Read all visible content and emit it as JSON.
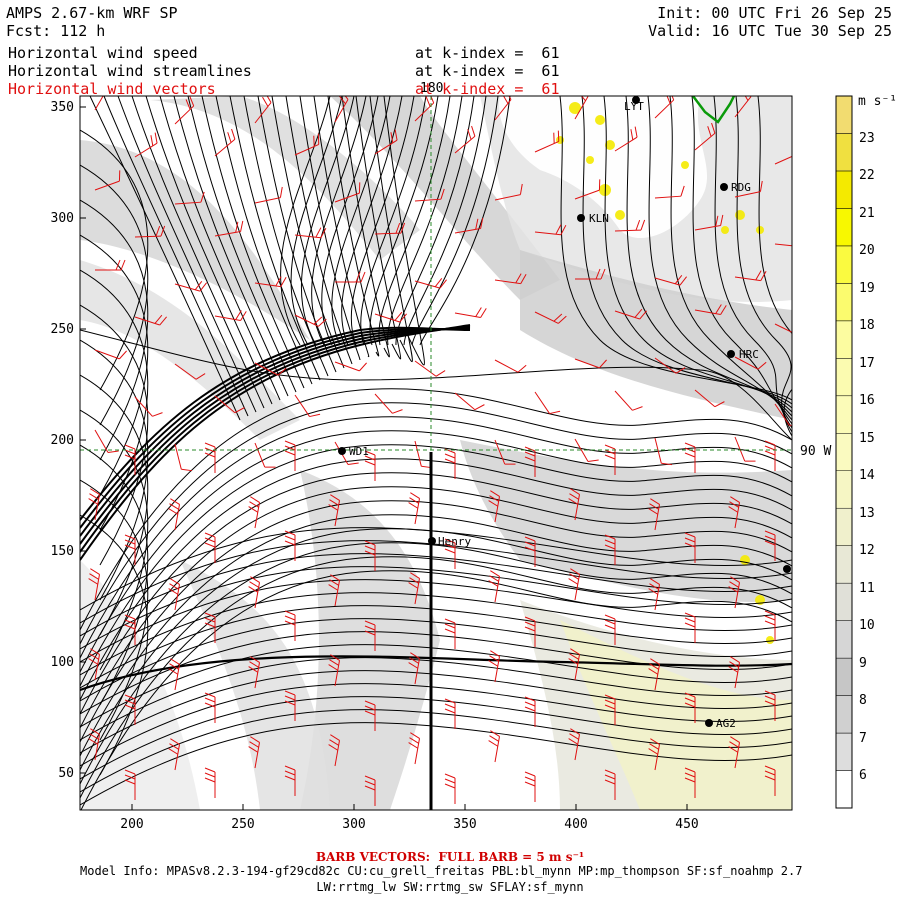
{
  "header": {
    "title": "AMPS 2.67-km WRF SP",
    "forecast": "Fcst: 112 h",
    "init": "Init: 00 UTC Fri 26 Sep 25",
    "valid": "Valid: 16 UTC Tue 30 Sep 25"
  },
  "fields": [
    {
      "name": "Horizontal wind speed",
      "level": "at k-index =  61",
      "color": "#000000"
    },
    {
      "name": "Horizontal wind streamlines",
      "level": "at k-index =  61",
      "color": "#000000"
    },
    {
      "name": "Horizontal wind vectors",
      "level": "at k-index =  61",
      "color": "#e01010"
    }
  ],
  "axes": {
    "x_ticks": [
      "200",
      "250",
      "300",
      "350",
      "400",
      "450"
    ],
    "y_ticks": [
      "350",
      "300",
      "250",
      "200",
      "150",
      "100",
      "50"
    ],
    "meridian_label": "180",
    "parallel_label": "90 W"
  },
  "stations": [
    {
      "name": "LYT",
      "label": "LYT"
    },
    {
      "name": "RDG",
      "label": "RDG"
    },
    {
      "name": "KLN",
      "label": "KLN"
    },
    {
      "name": "HRC",
      "label": "HRC"
    },
    {
      "name": "WD1",
      "label": "WD1"
    },
    {
      "name": "Henry",
      "label": "Henry"
    },
    {
      "name": "AG2",
      "label": "AG2"
    }
  ],
  "colorbar": {
    "units": "m s⁻¹",
    "min": 5,
    "max": 24,
    "labels": [
      "23",
      "22",
      "21",
      "20",
      "19",
      "18",
      "17",
      "16",
      "15",
      "14",
      "13",
      "12",
      "11",
      "10",
      "9",
      "8",
      "7",
      "6"
    ],
    "bins": [
      {
        "from": 5,
        "to": 6,
        "color": "#ffffff"
      },
      {
        "from": 6,
        "to": 7,
        "color": "#dddddd"
      },
      {
        "from": 7,
        "to": 8,
        "color": "#d0d0d0"
      },
      {
        "from": 8,
        "to": 9,
        "color": "#c6c6c6"
      },
      {
        "from": 9,
        "to": 10,
        "color": "#d6d6d6"
      },
      {
        "from": 10,
        "to": 11,
        "color": "#e0e0d8"
      },
      {
        "from": 11,
        "to": 12,
        "color": "#e8e8d6"
      },
      {
        "from": 12,
        "to": 13,
        "color": "#f0f0cc"
      },
      {
        "from": 13,
        "to": 14,
        "color": "#f6f6c4"
      },
      {
        "from": 14,
        "to": 15,
        "color": "#fafac0"
      },
      {
        "from": 15,
        "to": 16,
        "color": "#fbfbb8"
      },
      {
        "from": 16,
        "to": 17,
        "color": "#fbfbb0"
      },
      {
        "from": 17,
        "to": 18,
        "color": "#fcfca0"
      },
      {
        "from": 18,
        "to": 19,
        "color": "#fbfb6e"
      },
      {
        "from": 19,
        "to": 20,
        "color": "#fafa40"
      },
      {
        "from": 20,
        "to": 21,
        "color": "#f8f800"
      },
      {
        "from": 21,
        "to": 22,
        "color": "#f4ea00"
      },
      {
        "from": 22,
        "to": 23,
        "color": "#f0e040"
      },
      {
        "from": 23,
        "to": 24,
        "color": "#f2dc70"
      }
    ]
  },
  "footer": {
    "barb_note": "BARB VECTORS:  FULL BARB = 5 m s⁻¹",
    "model_info": "Model Info: MPASv8.2.3-194-gf29cd82c CU:cu_grell_freitas PBL:bl_mynn MP:mp_thompson SF:sf_noahmp 2.7",
    "model_info2": "LW:rrtmg_lw SW:rrtmg_sw SFLAY:sf_mynn"
  }
}
